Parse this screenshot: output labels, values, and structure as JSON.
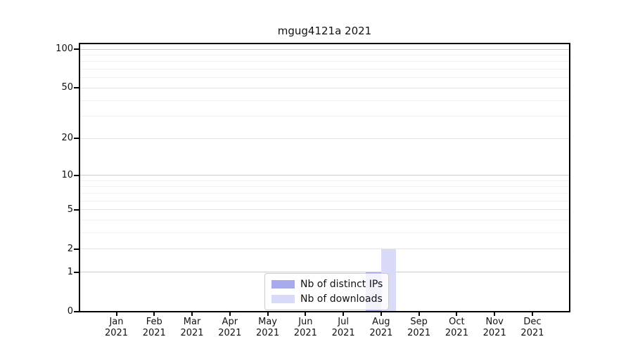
{
  "chart_data": {
    "type": "bar",
    "title": "mgug4121a 2021",
    "categories": [
      {
        "month": "Jan",
        "year": "2021"
      },
      {
        "month": "Feb",
        "year": "2021"
      },
      {
        "month": "Mar",
        "year": "2021"
      },
      {
        "month": "Apr",
        "year": "2021"
      },
      {
        "month": "May",
        "year": "2021"
      },
      {
        "month": "Jun",
        "year": "2021"
      },
      {
        "month": "Jul",
        "year": "2021"
      },
      {
        "month": "Aug",
        "year": "2021"
      },
      {
        "month": "Sep",
        "year": "2021"
      },
      {
        "month": "Oct",
        "year": "2021"
      },
      {
        "month": "Nov",
        "year": "2021"
      },
      {
        "month": "Dec",
        "year": "2021"
      }
    ],
    "series": [
      {
        "name": "Nb of distinct IPs",
        "color": "#a9a9ee",
        "values": [
          0,
          0,
          0,
          0,
          0,
          0,
          0,
          1,
          0,
          0,
          0,
          0
        ]
      },
      {
        "name": "Nb of downloads",
        "color": "#d9d9f8",
        "values": [
          0,
          0,
          0,
          0,
          0,
          0,
          0,
          2,
          0,
          0,
          0,
          0
        ]
      }
    ],
    "xlabel": "",
    "ylabel": "",
    "y_axis": {
      "scale": "log10(1+x)",
      "major_ticks": [
        0,
        1,
        2,
        5,
        10,
        20,
        50,
        100
      ],
      "minor_ticks": [
        3,
        4,
        6,
        7,
        8,
        9,
        30,
        40,
        60,
        70,
        80,
        90
      ],
      "ylim": [
        0,
        110
      ]
    },
    "grid": true,
    "legend_position": "bottom-center"
  },
  "colors": {
    "bar_distinct_ips": "#a9a9ee",
    "bar_downloads": "#d9d9f8",
    "grid_decade": "#cccccc",
    "grid_major": "#e4e4e4",
    "grid_minor": "#f0f0f0",
    "spine": "#000000",
    "legend_border": "#cbcbcb",
    "text": "#111111"
  }
}
